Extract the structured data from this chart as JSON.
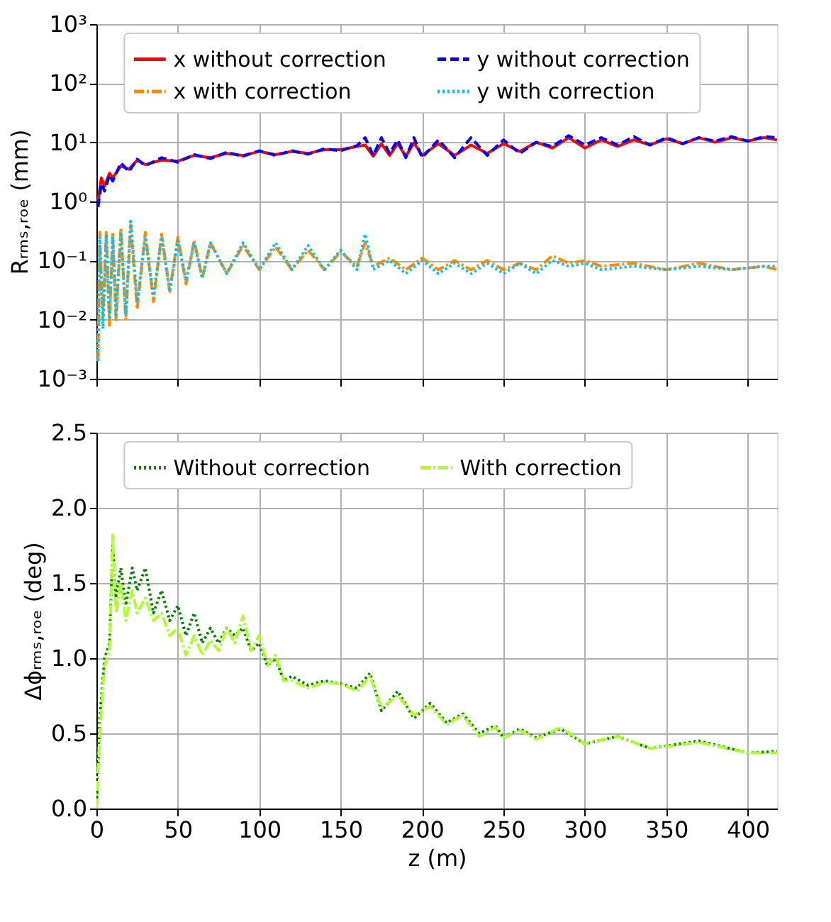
{
  "chart_data": [
    {
      "type": "line",
      "ylabel": "Rᵣₘₛ,ᵣₒₑ (mm)",
      "log": true,
      "grid": true,
      "legend": "top",
      "marker": "none",
      "tick_labels": "y",
      "xlim": [
        0,
        418
      ],
      "xticks": [
        0,
        50,
        100,
        150,
        200,
        250,
        300,
        350,
        400
      ],
      "ylim": [
        0.001,
        1000
      ],
      "yticks": [
        {
          "value": 0.001,
          "label": "10⁻³"
        },
        {
          "value": 0.01,
          "label": "10⁻²"
        },
        {
          "value": 0.1,
          "label": "10⁻¹"
        },
        {
          "value": 1,
          "label": "10⁰"
        },
        {
          "value": 10,
          "label": "10¹"
        },
        {
          "value": 100,
          "label": "10²"
        },
        {
          "value": 1000,
          "label": "10³"
        }
      ],
      "series": [
        {
          "name": "x without correction",
          "color": "#ff0000",
          "line_style": "solid",
          "x": [
            1,
            3,
            5,
            8,
            10,
            15,
            20,
            25,
            30,
            40,
            50,
            60,
            70,
            80,
            90,
            100,
            110,
            120,
            130,
            140,
            150,
            160,
            165,
            170,
            175,
            180,
            185,
            190,
            195,
            200,
            210,
            220,
            230,
            240,
            250,
            260,
            270,
            280,
            290,
            300,
            310,
            320,
            330,
            340,
            350,
            360,
            370,
            380,
            390,
            400,
            410,
            418
          ],
          "values": [
            1.0,
            2.5,
            1.8,
            3,
            2.5,
            4,
            3.5,
            5,
            4.2,
            5,
            4.8,
            6,
            5.5,
            6.5,
            6,
            7,
            6.2,
            7,
            6.5,
            7.5,
            7.5,
            8.5,
            9,
            5.8,
            9.5,
            6,
            9.5,
            5.8,
            9.8,
            6,
            9.5,
            6,
            9,
            6.5,
            9.5,
            7,
            10,
            8,
            12,
            8,
            11,
            8.5,
            11,
            9,
            11.5,
            9.5,
            12,
            10,
            12,
            10.5,
            12,
            11
          ]
        },
        {
          "name": "x with correction",
          "color": "#ff8c00",
          "line_style": "dashdot",
          "x": [
            1,
            2,
            4,
            6,
            8,
            10,
            12,
            15,
            18,
            21,
            25,
            30,
            35,
            40,
            45,
            50,
            55,
            60,
            65,
            70,
            80,
            90,
            100,
            110,
            120,
            130,
            140,
            150,
            160,
            165,
            170,
            180,
            190,
            200,
            210,
            220,
            230,
            240,
            250,
            260,
            270,
            280,
            290,
            300,
            310,
            330,
            350,
            370,
            390,
            410,
            418
          ],
          "values": [
            0.002,
            0.3,
            0.01,
            0.3,
            0.008,
            0.3,
            0.01,
            0.35,
            0.01,
            0.4,
            0.015,
            0.3,
            0.02,
            0.28,
            0.03,
            0.25,
            0.04,
            0.22,
            0.05,
            0.2,
            0.06,
            0.18,
            0.07,
            0.17,
            0.07,
            0.15,
            0.07,
            0.14,
            0.08,
            0.2,
            0.08,
            0.11,
            0.07,
            0.11,
            0.07,
            0.1,
            0.07,
            0.1,
            0.07,
            0.09,
            0.07,
            0.12,
            0.09,
            0.1,
            0.08,
            0.09,
            0.07,
            0.09,
            0.07,
            0.08,
            0.07
          ]
        },
        {
          "name": "y without correction",
          "color": "#0000ff",
          "line_style": "dashed",
          "x": [
            1,
            3,
            5,
            8,
            10,
            15,
            20,
            25,
            30,
            40,
            50,
            60,
            70,
            80,
            90,
            100,
            110,
            120,
            130,
            140,
            150,
            160,
            165,
            170,
            175,
            180,
            185,
            190,
            195,
            200,
            210,
            220,
            230,
            240,
            250,
            260,
            270,
            280,
            290,
            300,
            310,
            320,
            330,
            340,
            350,
            360,
            370,
            380,
            390,
            400,
            410,
            418
          ],
          "values": [
            0.8,
            2,
            1.5,
            2.8,
            2.2,
            4.5,
            3.2,
            5.2,
            4,
            5.5,
            4.6,
            6.2,
            5.3,
            6.8,
            5.8,
            7.2,
            6,
            7.2,
            6.3,
            7.8,
            7.2,
            8.8,
            12,
            6,
            12,
            6.5,
            11,
            5.5,
            12,
            5.5,
            11,
            5.5,
            12,
            6,
            11,
            6.5,
            10,
            8.5,
            13,
            9,
            12,
            9,
            12.5,
            9,
            12,
            9.5,
            12,
            10.5,
            12.5,
            10.5,
            12.5,
            12
          ]
        },
        {
          "name": "y with correction",
          "color": "#00bfff",
          "line_style": "dotted",
          "x": [
            1,
            2,
            4,
            6,
            8,
            10,
            12,
            15,
            18,
            21,
            25,
            30,
            35,
            40,
            45,
            50,
            55,
            60,
            65,
            70,
            80,
            90,
            100,
            110,
            120,
            130,
            140,
            150,
            160,
            165,
            170,
            180,
            190,
            200,
            210,
            220,
            230,
            240,
            250,
            260,
            270,
            280,
            290,
            300,
            310,
            330,
            350,
            370,
            390,
            410,
            418
          ],
          "values": [
            0.002,
            0.25,
            0.007,
            0.28,
            0.01,
            0.25,
            0.012,
            0.3,
            0.012,
            0.5,
            0.02,
            0.25,
            0.025,
            0.25,
            0.03,
            0.22,
            0.045,
            0.2,
            0.05,
            0.2,
            0.06,
            0.2,
            0.07,
            0.2,
            0.07,
            0.18,
            0.07,
            0.15,
            0.07,
            0.28,
            0.07,
            0.1,
            0.06,
            0.1,
            0.06,
            0.09,
            0.06,
            0.09,
            0.06,
            0.09,
            0.06,
            0.1,
            0.08,
            0.09,
            0.07,
            0.08,
            0.07,
            0.08,
            0.07,
            0.08,
            0.08
          ]
        }
      ]
    },
    {
      "type": "line",
      "xlabel": "z (m)",
      "ylabel": "Δϕᵣₘₛ,ᵣₒₑ (deg)",
      "grid": true,
      "legend": "top",
      "marker": "none",
      "xlim": [
        0,
        418
      ],
      "xticks": [
        0,
        50,
        100,
        150,
        200,
        250,
        300,
        350,
        400
      ],
      "ylim": [
        0,
        2.5
      ],
      "yticks": [
        {
          "value": 0,
          "label": "0.0"
        },
        {
          "value": 0.5,
          "label": "0.5"
        },
        {
          "value": 1,
          "label": "1.0"
        },
        {
          "value": 1.5,
          "label": "1.5"
        },
        {
          "value": 2,
          "label": "2.0"
        },
        {
          "value": 2.5,
          "label": "2.5"
        }
      ],
      "series": [
        {
          "name": "Without correction",
          "color": "#008000",
          "line_style": "dotted",
          "x": [
            0,
            2,
            5,
            8,
            10,
            12,
            15,
            18,
            22,
            25,
            30,
            35,
            40,
            45,
            50,
            55,
            60,
            65,
            70,
            75,
            80,
            85,
            90,
            95,
            100,
            105,
            110,
            115,
            120,
            130,
            140,
            150,
            160,
            168,
            175,
            185,
            195,
            205,
            215,
            225,
            235,
            245,
            250,
            260,
            270,
            285,
            300,
            320,
            340,
            370,
            400,
            418
          ],
          "values": [
            0,
            0.6,
            1.0,
            1.1,
            1.75,
            1.4,
            1.6,
            1.35,
            1.6,
            1.45,
            1.6,
            1.3,
            1.45,
            1.25,
            1.35,
            1.15,
            1.3,
            1.1,
            1.2,
            1.1,
            1.2,
            1.15,
            1.2,
            1.05,
            1.1,
            0.95,
            1.0,
            0.85,
            0.88,
            0.82,
            0.85,
            0.83,
            0.8,
            0.9,
            0.65,
            0.78,
            0.6,
            0.7,
            0.57,
            0.63,
            0.5,
            0.55,
            0.47,
            0.53,
            0.47,
            0.53,
            0.43,
            0.48,
            0.4,
            0.45,
            0.37,
            0.38
          ]
        },
        {
          "name": "With correction",
          "color": "#adff2f",
          "line_style": "dashdot",
          "x": [
            0,
            2,
            5,
            8,
            10,
            12,
            15,
            18,
            22,
            25,
            30,
            35,
            40,
            45,
            50,
            55,
            60,
            65,
            70,
            75,
            80,
            85,
            90,
            95,
            100,
            105,
            110,
            115,
            120,
            130,
            140,
            150,
            160,
            168,
            175,
            185,
            195,
            205,
            215,
            225,
            235,
            245,
            250,
            260,
            270,
            285,
            300,
            320,
            340,
            370,
            400,
            418
          ],
          "values": [
            0,
            0.5,
            0.95,
            1.05,
            1.82,
            1.3,
            1.5,
            1.25,
            1.45,
            1.3,
            1.4,
            1.25,
            1.3,
            1.15,
            1.2,
            1.02,
            1.15,
            1.02,
            1.12,
            1.05,
            1.2,
            1.1,
            1.28,
            1.05,
            1.15,
            0.95,
            1.02,
            0.85,
            0.85,
            0.8,
            0.84,
            0.83,
            0.78,
            0.88,
            0.67,
            0.75,
            0.62,
            0.68,
            0.56,
            0.62,
            0.48,
            0.54,
            0.47,
            0.52,
            0.46,
            0.54,
            0.43,
            0.48,
            0.4,
            0.44,
            0.37,
            0.37
          ]
        }
      ]
    }
  ]
}
